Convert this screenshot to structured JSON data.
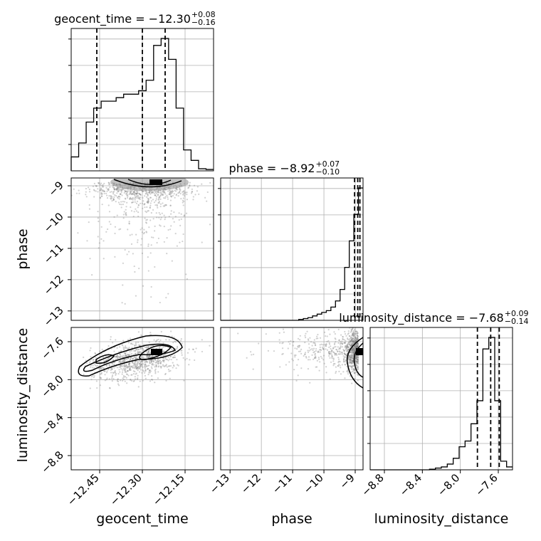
{
  "chart_data": {
    "type": "corner",
    "parameters": [
      "geocent_time",
      "phase",
      "luminosity_distance"
    ],
    "titles": [
      {
        "param": "geocent_time",
        "text": "geocent_time = −12.30",
        "sup": "+0.08",
        "sub": "−0.16"
      },
      {
        "param": "phase",
        "text": "phase = −8.92",
        "sup": "+0.07",
        "sub": "−0.10"
      },
      {
        "param": "luminosity_distance",
        "text": "luminosity_distance = −7.68",
        "sup": "+0.09",
        "sub": "−0.14"
      }
    ],
    "axis_labels": {
      "bottom": [
        "geocent_time",
        "phase",
        "luminosity_distance"
      ],
      "left": [
        "phase",
        "luminosity_distance"
      ]
    },
    "ranges": {
      "geocent_time": [
        -12.55,
        -12.05
      ],
      "phase": [
        -13.3,
        -8.75
      ],
      "luminosity_distance": [
        -8.95,
        -7.45
      ]
    },
    "ticks": {
      "geocent_time": {
        "values": [
          -12.45,
          -12.3,
          -12.15
        ],
        "labels": [
          "−12.45",
          "−12.30",
          "−12.15"
        ]
      },
      "phase": {
        "values": [
          -13,
          -12,
          -11,
          -10,
          -9
        ],
        "labels": [
          "−13",
          "−12",
          "−11",
          "−10",
          "−9"
        ]
      },
      "luminosity_distance": {
        "values": [
          -8.8,
          -8.4,
          -8.0,
          -7.6
        ],
        "labels": [
          "−8.8",
          "−8.4",
          "−8.0",
          "−7.6"
        ]
      }
    },
    "quantiles": {
      "geocent_time": [
        -12.46,
        -12.3,
        -12.22
      ],
      "phase": [
        -9.02,
        -8.92,
        -8.85
      ],
      "luminosity_distance": [
        -7.82,
        -7.68,
        -7.59
      ]
    },
    "histograms": {
      "geocent_time": [
        2,
        4,
        7,
        9,
        10,
        10,
        10.5,
        11,
        11,
        11.5,
        13,
        18,
        19,
        16,
        9,
        3,
        1.5,
        0.3,
        0.2
      ],
      "phase": [
        0,
        0,
        0,
        0,
        0,
        0,
        0,
        0,
        0,
        0,
        0,
        0,
        0,
        0,
        0,
        0,
        0,
        0.1,
        0.2,
        0.3,
        0.5,
        0.7,
        0.9,
        1.1,
        1.5,
        2.2,
        3.5,
        6,
        9,
        12,
        15
      ],
      "luminosity_distance": [
        0,
        0,
        0,
        0,
        0,
        0,
        0,
        0,
        0,
        0,
        0.1,
        0.3,
        0.5,
        1,
        2,
        4,
        5,
        8,
        12,
        21,
        23,
        12,
        1.5,
        0.5
      ]
    },
    "grid": true
  }
}
